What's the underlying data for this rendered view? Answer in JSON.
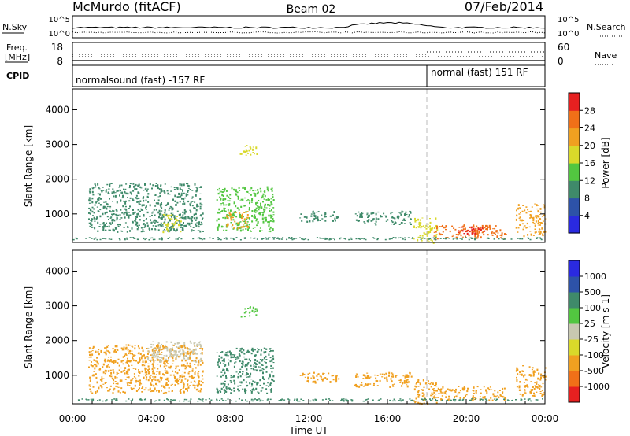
{
  "header": {
    "station": "McMurdo (fitACF)",
    "beam": "Beam 02",
    "date": "07/Feb/2014"
  },
  "noise_panel": {
    "left_label": "N.Sky",
    "left_ticks": [
      "10^5",
      "10^0"
    ],
    "right_ticks": [
      "10^5",
      "10^0"
    ],
    "right_label": "N.Search"
  },
  "freq_panel": {
    "left_label_line1": "Freq.",
    "left_label_line2": "[MHz]",
    "left_ticks": [
      "18",
      "8"
    ],
    "right_ticks": [
      "60",
      "0"
    ],
    "right_label": "Nave"
  },
  "cpid_panel": {
    "label": "CPID",
    "segments": [
      {
        "label": "normalsound (fast) -157 RF",
        "start_hour": 0
      },
      {
        "label": "normal (fast) 151 RF",
        "start_hour": 18
      }
    ]
  },
  "chart_data": [
    {
      "type": "heatmap",
      "parameter": "Power",
      "ylabel": "Slant Range [km]",
      "xlabel": "",
      "yticks": [
        1000,
        2000,
        3000,
        4000
      ],
      "ylim": [
        180,
        4600
      ],
      "xlim_hours": [
        0,
        24
      ],
      "colorbar": {
        "label": "Power [dB]",
        "ticks": [
          "4",
          "8",
          "12",
          "16",
          "20",
          "24",
          "28"
        ],
        "colors": [
          "#2a2ae0",
          "#2d52a8",
          "#3f8a6a",
          "#52c640",
          "#d9d92a",
          "#f0a020",
          "#f07018",
          "#e62020"
        ]
      },
      "echo_regions": [
        {
          "start_hour": 0.8,
          "end_hour": 6.6,
          "range_min_km": 500,
          "range_max_km": 1900,
          "level": 8
        },
        {
          "start_hour": 4.5,
          "end_hour": 5.5,
          "range_min_km": 500,
          "range_max_km": 1000,
          "level": 16
        },
        {
          "start_hour": 7.3,
          "end_hour": 10.2,
          "range_min_km": 500,
          "range_max_km": 1800,
          "level": 12
        },
        {
          "start_hour": 7.8,
          "end_hour": 8.9,
          "range_min_km": 600,
          "range_max_km": 1100,
          "level": 20
        },
        {
          "start_hour": 8.5,
          "end_hour": 9.4,
          "range_min_km": 2700,
          "range_max_km": 3000,
          "level": 16
        },
        {
          "start_hour": 11.5,
          "end_hour": 13.5,
          "range_min_km": 800,
          "range_max_km": 1100,
          "level": 8
        },
        {
          "start_hour": 14.3,
          "end_hour": 17.2,
          "range_min_km": 700,
          "range_max_km": 1100,
          "level": 8
        },
        {
          "start_hour": 17.3,
          "end_hour": 18.5,
          "range_min_km": 200,
          "range_max_km": 900,
          "level": 16
        },
        {
          "start_hour": 18.3,
          "end_hour": 22.0,
          "range_min_km": 300,
          "range_max_km": 700,
          "level": 24
        },
        {
          "start_hour": 19.5,
          "end_hour": 21.0,
          "range_min_km": 450,
          "range_max_km": 650,
          "level": 28
        },
        {
          "start_hour": 22.5,
          "end_hour": 24.0,
          "range_min_km": 400,
          "range_max_km": 1300,
          "level": 20
        }
      ]
    },
    {
      "type": "heatmap",
      "parameter": "Velocity",
      "ylabel": "Slant Range [km]",
      "xlabel": "Time UT",
      "yticks": [
        1000,
        2000,
        3000,
        4000
      ],
      "ylim": [
        180,
        4600
      ],
      "xlim_hours": [
        0,
        24
      ],
      "xticks": [
        "00:00",
        "04:00",
        "08:00",
        "12:00",
        "16:00",
        "20:00",
        "00:00"
      ],
      "colorbar": {
        "label": "Velocity [m s-1]",
        "ticks": [
          "-1000",
          "-500",
          "-100",
          "-25",
          "25",
          "100",
          "500",
          "1000"
        ],
        "colors": [
          "#e62020",
          "#f07018",
          "#f0a020",
          "#d9d92a",
          "#c8c8b0",
          "#52c640",
          "#3f8a6a",
          "#2d52a8",
          "#2a2ae0"
        ]
      },
      "echo_regions": [
        {
          "start_hour": 0.8,
          "end_hour": 6.6,
          "range_min_km": 500,
          "range_max_km": 1900,
          "level": -100
        },
        {
          "start_hour": 3.8,
          "end_hour": 6.5,
          "range_min_km": 1400,
          "range_max_km": 2000,
          "level": 0
        },
        {
          "start_hour": 7.3,
          "end_hour": 10.2,
          "range_min_km": 500,
          "range_max_km": 1800,
          "level": 200
        },
        {
          "start_hour": 8.5,
          "end_hour": 9.4,
          "range_min_km": 2700,
          "range_max_km": 3000,
          "level": 100
        },
        {
          "start_hour": 11.5,
          "end_hour": 13.5,
          "range_min_km": 800,
          "range_max_km": 1100,
          "level": -100
        },
        {
          "start_hour": 14.3,
          "end_hour": 17.2,
          "range_min_km": 700,
          "range_max_km": 1100,
          "level": -150
        },
        {
          "start_hour": 17.3,
          "end_hour": 18.5,
          "range_min_km": 200,
          "range_max_km": 900,
          "level": -300
        },
        {
          "start_hour": 18.3,
          "end_hour": 22.0,
          "range_min_km": 300,
          "range_max_km": 700,
          "level": -200
        },
        {
          "start_hour": 22.5,
          "end_hour": 24.0,
          "range_min_km": 400,
          "range_max_km": 1300,
          "level": -300
        }
      ]
    }
  ]
}
